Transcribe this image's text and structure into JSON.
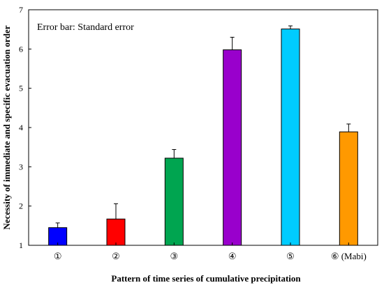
{
  "chart_data": {
    "type": "bar",
    "categories": [
      "①",
      "②",
      "③",
      "④",
      "⑤",
      "⑥ (Mabi)"
    ],
    "values": [
      1.45,
      1.67,
      3.22,
      5.98,
      6.51,
      3.89
    ],
    "errors": [
      0.12,
      0.39,
      0.22,
      0.32,
      0.08,
      0.2
    ],
    "colors": [
      "#0000ff",
      "#ff0000",
      "#00a550",
      "#9900cc",
      "#00ccff",
      "#ff9900"
    ],
    "xlabel": "Pattern of time series of cumulative precipitation",
    "ylabel": "Necessity of immediate and specific evacuation order",
    "ylim": [
      1,
      7
    ],
    "yticks": [
      1,
      2,
      3,
      4,
      5,
      6,
      7
    ],
    "annotation": "Error bar: Standard error",
    "grid": false
  }
}
